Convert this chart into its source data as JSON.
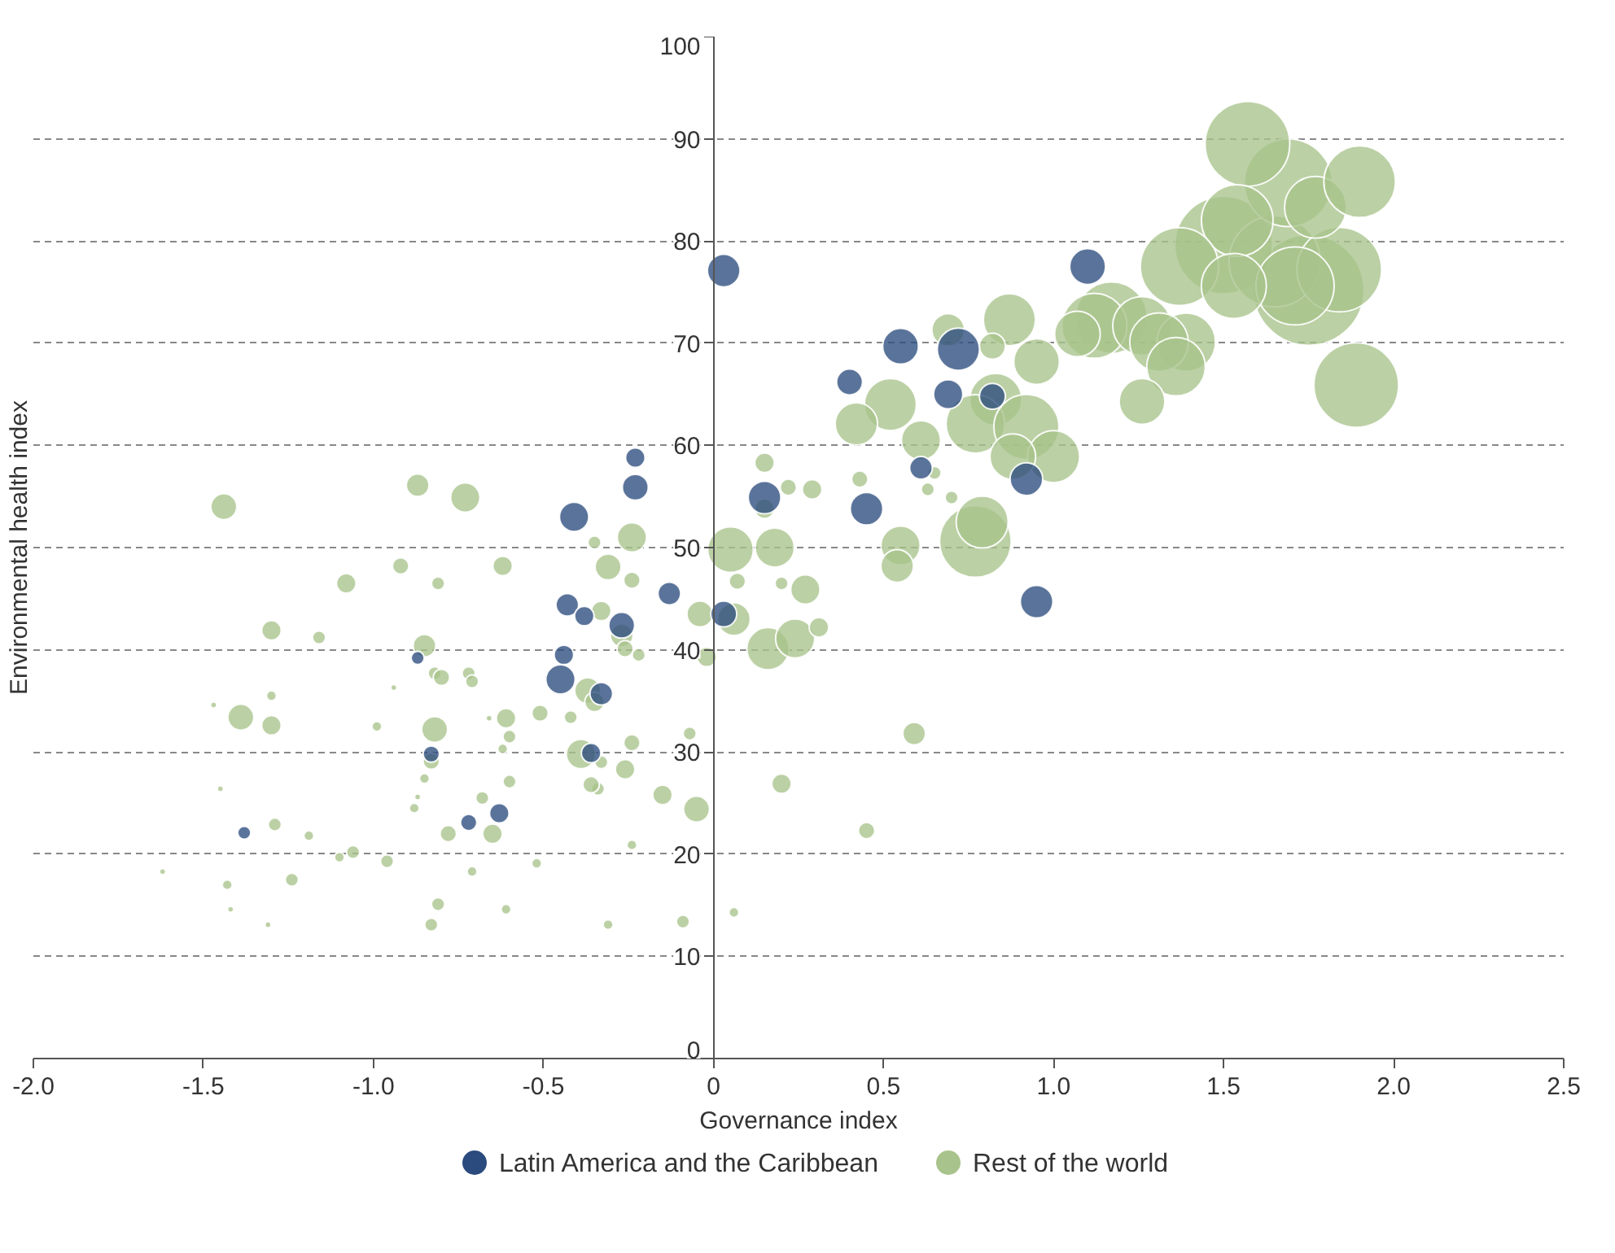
{
  "chart_data": {
    "type": "bubble",
    "xlabel": "Governance index",
    "ylabel": "Environmental health index",
    "xlim": [
      -2,
      2.5
    ],
    "ylim": [
      0,
      100
    ],
    "xticks": [
      {
        "value": -2,
        "label": "-2.0"
      },
      -1.5,
      {
        "value": -1,
        "label": "-1.0"
      },
      -0.5,
      0,
      0.5,
      {
        "value": 1,
        "label": "1.0"
      },
      1.5,
      {
        "value": 2,
        "label": "2.0"
      },
      2.5
    ],
    "yticks": [
      0,
      10,
      20,
      30,
      40,
      50,
      60,
      70,
      80,
      90,
      100
    ],
    "grid": "y",
    "legend": "bottom",
    "marker": "circle",
    "series": [
      {
        "name": "Latin America and the Caribbean",
        "color": "#2b4b7e",
        "x": [
          0.03,
          1.1,
          0.55,
          0.72,
          0.4,
          0.69,
          0.82,
          0.61,
          0.92,
          0.15,
          0.45,
          0.95,
          -0.23,
          -0.23,
          -0.41,
          -0.13,
          -0.43,
          -0.38,
          -0.27,
          0.03,
          -0.44,
          -0.45,
          -0.33,
          -0.36,
          -0.83,
          -0.87,
          -0.63,
          -0.72,
          -1.38
        ],
        "values": [
          77.1,
          77.5,
          69.7,
          69.4,
          66.2,
          65.0,
          64.8,
          57.8,
          56.7,
          54.9,
          53.8,
          44.7,
          58.8,
          55.9,
          53.0,
          45.5,
          44.4,
          43.3,
          42.4,
          43.5,
          39.5,
          37.1,
          35.7,
          29.9,
          29.8,
          39.2,
          24.0,
          23.1,
          22.1
        ],
        "sizes": [
          0.087,
          0.105,
          0.105,
          0.146,
          0.055,
          0.07,
          0.055,
          0.042,
          0.087,
          0.087,
          0.087,
          0.087,
          0.031,
          0.055,
          0.07,
          0.042,
          0.042,
          0.031,
          0.055,
          0.055,
          0.031,
          0.07,
          0.042,
          0.031,
          0.022,
          0.014,
          0.031,
          0.022,
          0.014
        ]
      },
      {
        "name": "Rest of the world",
        "color": "#a8c38b",
        "x": [
          1.75,
          1.5,
          1.65,
          1.69,
          1.57,
          1.84,
          1.54,
          1.89,
          1.77,
          1.37,
          1.9,
          1.71,
          1.53,
          1.17,
          1.12,
          1.26,
          1.39,
          1.31,
          1.07,
          1.36,
          1.26,
          0.87,
          0.69,
          0.82,
          0.95,
          0.52,
          0.42,
          0.61,
          0.83,
          0.77,
          0.92,
          1.0,
          0.88,
          0.77,
          0.79,
          0.55,
          0.54,
          0.43,
          0.63,
          0.65,
          0.7,
          0.05,
          0.18,
          0.15,
          0.15,
          0.22,
          0.29,
          0.07,
          0.2,
          0.27,
          0.06,
          0.16,
          0.24,
          0.31,
          -0.04,
          -0.02,
          0.2,
          0.45,
          0.59,
          -0.05,
          0.06,
          -0.09,
          -0.07,
          -0.15,
          -0.24,
          -0.24,
          -0.26,
          -0.34,
          -0.36,
          -0.33,
          -0.37,
          -0.35,
          -0.39,
          -0.42,
          -0.51,
          -0.52,
          -0.31,
          -0.24,
          -0.31,
          -0.24,
          -0.35,
          -0.33,
          -0.27,
          -0.26,
          -0.22,
          -0.62,
          -0.73,
          -0.87,
          -0.81,
          -0.92,
          -1.08,
          -1.16,
          -1.3,
          -1.44,
          -0.85,
          -0.82,
          -0.8,
          -0.72,
          -0.71,
          -0.82,
          -0.83,
          -0.99,
          -0.94,
          -1.39,
          -1.3,
          -1.3,
          -1.47,
          -1.45,
          -1.29,
          -1.19,
          -1.06,
          -1.1,
          -0.96,
          -1.24,
          -1.43,
          -1.62,
          -1.42,
          -1.31,
          -0.88,
          -0.87,
          -0.85,
          -0.78,
          -0.81,
          -0.83,
          -0.71,
          -0.65,
          -0.6,
          -0.6,
          -0.61,
          -0.61,
          -0.66,
          -0.68,
          -0.62
        ],
        "values": [
          75.2,
          79.6,
          78.0,
          85.7,
          89.5,
          77.2,
          82.0,
          65.9,
          83.3,
          77.5,
          85.8,
          75.6,
          75.6,
          72.5,
          71.7,
          71.7,
          70.1,
          70.1,
          70.9,
          67.7,
          64.3,
          72.3,
          71.3,
          69.7,
          68.2,
          64.0,
          62.1,
          60.5,
          64.5,
          62.1,
          61.8,
          58.9,
          58.9,
          50.6,
          52.5,
          50.2,
          48.2,
          56.7,
          55.7,
          57.3,
          54.9,
          49.8,
          50.0,
          53.8,
          58.3,
          55.9,
          55.7,
          46.7,
          46.5,
          45.9,
          43.0,
          40.1,
          41.1,
          42.2,
          43.5,
          39.3,
          26.9,
          22.3,
          31.8,
          24.4,
          14.3,
          13.4,
          31.8,
          25.8,
          30.9,
          20.9,
          28.3,
          26.4,
          26.8,
          29.0,
          36.0,
          34.9,
          29.8,
          33.4,
          33.8,
          19.1,
          13.1,
          51.0,
          48.1,
          46.8,
          50.5,
          43.8,
          41.4,
          40.1,
          39.5,
          48.2,
          54.9,
          56.1,
          46.5,
          48.2,
          46.5,
          41.2,
          41.9,
          54.0,
          40.4,
          37.7,
          37.3,
          37.7,
          36.9,
          32.2,
          29.1,
          32.5,
          36.3,
          33.4,
          32.6,
          35.5,
          34.6,
          26.4,
          22.9,
          21.8,
          20.2,
          19.7,
          19.3,
          17.5,
          17.0,
          18.3,
          14.6,
          13.1,
          24.5,
          25.6,
          27.4,
          22.0,
          15.1,
          13.1,
          18.3,
          22.0,
          27.1,
          31.5,
          14.6,
          33.3,
          33.3,
          25.5,
          30.3
        ],
        "sizes": [
          1,
          0.779,
          0.678,
          0.631,
          0.585,
          0.585,
          0.419,
          0.585,
          0.312,
          0.498,
          0.419,
          0.498,
          0.346,
          0.419,
          0.346,
          0.28,
          0.28,
          0.28,
          0.17,
          0.28,
          0.17,
          0.221,
          0.087,
          0.055,
          0.17,
          0.221,
          0.146,
          0.125,
          0.221,
          0.28,
          0.346,
          0.221,
          0.17,
          0.419,
          0.221,
          0.125,
          0.087,
          0.022,
          0.014,
          0.014,
          0.014,
          0.17,
          0.125,
          0.031,
          0.031,
          0.022,
          0.031,
          0.022,
          0.014,
          0.07,
          0.087,
          0.146,
          0.125,
          0.031,
          0.055,
          0.031,
          0.031,
          0.022,
          0.042,
          0.055,
          0.008,
          0.014,
          0.014,
          0.031,
          0.022,
          0.008,
          0.031,
          0.014,
          0.022,
          0.014,
          0.055,
          0.031,
          0.07,
          0.014,
          0.022,
          0.008,
          0.008,
          0.07,
          0.055,
          0.022,
          0.014,
          0.031,
          0.042,
          0.022,
          0.014,
          0.031,
          0.07,
          0.042,
          0.014,
          0.022,
          0.031,
          0.014,
          0.031,
          0.055,
          0.042,
          0.014,
          0.022,
          0.014,
          0.014,
          0.055,
          0.022,
          0.008,
          0.003,
          0.055,
          0.031,
          0.008,
          0.003,
          0.003,
          0.014,
          0.008,
          0.014,
          0.008,
          0.014,
          0.014,
          0.008,
          0.003,
          0.003,
          0.003,
          0.008,
          0.003,
          0.008,
          0.022,
          0.014,
          0.014,
          0.008,
          0.031,
          0.014,
          0.014,
          0.008,
          0.031,
          0.003,
          0.014,
          0.008
        ]
      }
    ]
  }
}
